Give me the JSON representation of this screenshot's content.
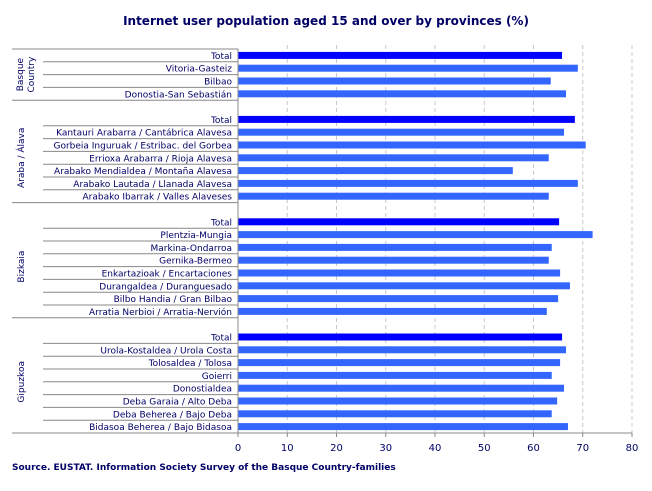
{
  "chart_data": {
    "type": "bar",
    "orientation": "horizontal",
    "title": "Internet user population aged 15 and over by provinces (%)",
    "xlim": [
      0,
      80
    ],
    "xticks": [
      0,
      10,
      20,
      30,
      40,
      50,
      60,
      70,
      80
    ],
    "grid": "vertical dashed",
    "colors": {
      "total": "#0000ff",
      "other": "#3366ff"
    },
    "groups": [
      {
        "name": "Basque Country",
        "items": [
          {
            "label": "Total",
            "value": 65.8,
            "total": true
          },
          {
            "label": "Vitoria-Gasteiz",
            "value": 69.0
          },
          {
            "label": "Bilbao",
            "value": 63.5
          },
          {
            "label": "Donostia-San Sebastián",
            "value": 66.6
          }
        ]
      },
      {
        "name": "Araba / Álava",
        "items": [
          {
            "label": "Total",
            "value": 68.4,
            "total": true
          },
          {
            "label": "Kantauri Arabarra / Cantábrica Alavesa",
            "value": 66.2
          },
          {
            "label": "Gorbeia Inguruak / Estribac. del Gorbea",
            "value": 70.6
          },
          {
            "label": "Errioxa Arabarra / Rioja Alavesa",
            "value": 63.1
          },
          {
            "label": "Arabako Mendialdea / Montaña Alavesa",
            "value": 55.8
          },
          {
            "label": "Arabako Lautada / Llanada Alavesa",
            "value": 69.0
          },
          {
            "label": "Arabako Ibarrak / Valles Alaveses",
            "value": 63.1
          }
        ]
      },
      {
        "name": "Bizkaia",
        "items": [
          {
            "label": "Total",
            "value": 65.2,
            "total": true
          },
          {
            "label": "Plentzia-Mungia",
            "value": 72.0
          },
          {
            "label": "Markina-Ondarroa",
            "value": 63.7
          },
          {
            "label": "Gernika-Bermeo",
            "value": 63.1
          },
          {
            "label": "Enkartazioak / Encartaciones",
            "value": 65.4
          },
          {
            "label": "Durangaldea / Duranguesado",
            "value": 67.4
          },
          {
            "label": "Bilbo Handia / Gran Bilbao",
            "value": 65.0
          },
          {
            "label": "Arratia Nerbioi / Arratia-Nervión",
            "value": 62.7
          }
        ]
      },
      {
        "name": "Gipuzkoa",
        "items": [
          {
            "label": "Total",
            "value": 65.8,
            "total": true
          },
          {
            "label": "Urola-Kostaldea / Urola Costa",
            "value": 66.6
          },
          {
            "label": "Tolosaldea / Tolosa",
            "value": 65.4
          },
          {
            "label": "Goierri",
            "value": 63.7
          },
          {
            "label": "Donostialdea",
            "value": 66.2
          },
          {
            "label": "Deba Garaia / Alto Deba",
            "value": 64.8
          },
          {
            "label": "Deba Beherea / Bajo Deba",
            "value": 63.7
          },
          {
            "label": "Bidasoa Beherea / Bajo Bidasoa",
            "value": 67.0
          }
        ]
      }
    ],
    "source": "Source. EUSTAT. Information Society Survey of the Basque Country-families"
  }
}
